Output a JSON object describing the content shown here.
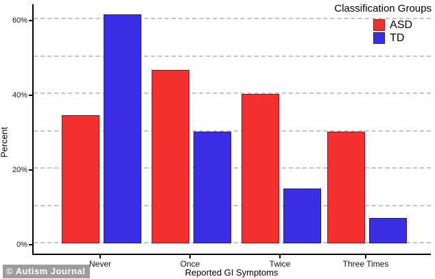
{
  "watermark": "© Autism Journal",
  "legend": {
    "title": "Classification Groups",
    "items": [
      {
        "label": "ASD",
        "color": "#f32f2f"
      },
      {
        "label": "TD",
        "color": "#3a2fe4"
      }
    ]
  },
  "chart_data": {
    "type": "bar",
    "title": "",
    "categories": [
      "Never",
      "Once",
      "Twice",
      "Three Times"
    ],
    "xlabel": "Reported GI Symptoms",
    "ylabel": "Percent",
    "series": [
      {
        "name": "ASD",
        "color": "#f32f2f",
        "values": [
          34.3,
          46.5,
          40.0,
          30.0
        ]
      },
      {
        "name": "TD",
        "color": "#3a2fe4",
        "values": [
          61.3,
          30.0,
          14.7,
          6.8
        ]
      }
    ],
    "ylim": [
      0,
      65
    ],
    "gridline_values": [
      0,
      10,
      20,
      30,
      40,
      50,
      60
    ],
    "y_ticks": [
      {
        "label": "0%",
        "value": 0
      },
      {
        "label": "20%",
        "value": 20
      },
      {
        "label": "40%",
        "value": 40
      },
      {
        "label": "60%",
        "value": 60
      }
    ],
    "grid": "horizontal dashed",
    "legend_position": "top-right"
  }
}
